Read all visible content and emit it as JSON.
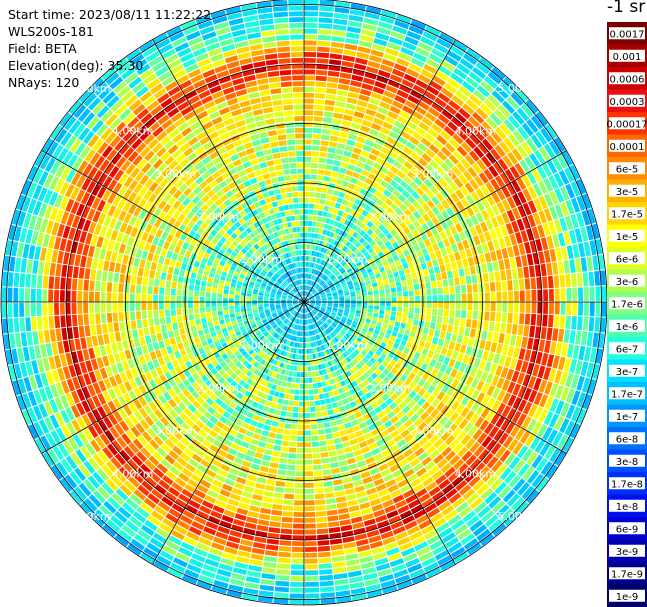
{
  "info": {
    "start_time": "Start time: 2023/08/11 11:22:22",
    "instrument": "WLS200s-181",
    "field": "Field: BETA",
    "elevation": "Elevation(deg): 35.30",
    "nrays": "NRays: 120"
  },
  "colorbar": {
    "title": "-1 sr",
    "labels": [
      "0.0017",
      "0.001",
      "0.0006",
      "0.0003",
      "0.00017",
      "0.0001",
      "6e-5",
      "3e-5",
      "1.7e-5",
      "1e-5",
      "6e-6",
      "3e-6",
      "1.7e-6",
      "1e-6",
      "6e-7",
      "3e-7",
      "1.7e-7",
      "1e-7",
      "6e-8",
      "3e-8",
      "1.7e-8",
      "1e-8",
      "6e-9",
      "3e-9",
      "1.7e-9",
      "1e-9"
    ],
    "colors": [
      "#7a0000",
      "#a80000",
      "#cc0000",
      "#ee1010",
      "#ff3300",
      "#ff6600",
      "#ff8c00",
      "#ffb000",
      "#ffd400",
      "#ffff00",
      "#e0ff20",
      "#b0ff50",
      "#80ff80",
      "#50ffb0",
      "#20ffe0",
      "#00e0ff",
      "#00bfff",
      "#0096ff",
      "#0070ff",
      "#0050ff",
      "#0030ff",
      "#0010f0",
      "#0000d0",
      "#0000b0",
      "#00008c",
      "#000068"
    ]
  },
  "chart_data": {
    "type": "heatmap",
    "subtype": "polar-ppi",
    "field": "BETA",
    "nrays": 120,
    "elevation_deg": 35.3,
    "range_rings_km": [
      1,
      2,
      3,
      4,
      5
    ],
    "ring_labels": [
      "1.00km",
      "2.00km",
      "3.00km",
      "4.00km",
      "5.00km"
    ],
    "radial_profile": [
      {
        "range_km": 0.0,
        "beta": "1e-7"
      },
      {
        "range_km": 0.5,
        "beta": "1e-7"
      },
      {
        "range_km": 1.0,
        "beta": "3e-7"
      },
      {
        "range_km": 2.0,
        "beta": "6e-7"
      },
      {
        "range_km": 3.0,
        "beta": "1e-6"
      },
      {
        "range_km": 3.6,
        "beta": "1.7e-6"
      },
      {
        "range_km": 4.0,
        "beta": "3e-5"
      },
      {
        "range_km": 4.4,
        "beta": "6e-7"
      },
      {
        "range_km": 5.0,
        "beta": "1e-7"
      }
    ],
    "colorbar_unit": "-1 sr",
    "grid": true
  }
}
